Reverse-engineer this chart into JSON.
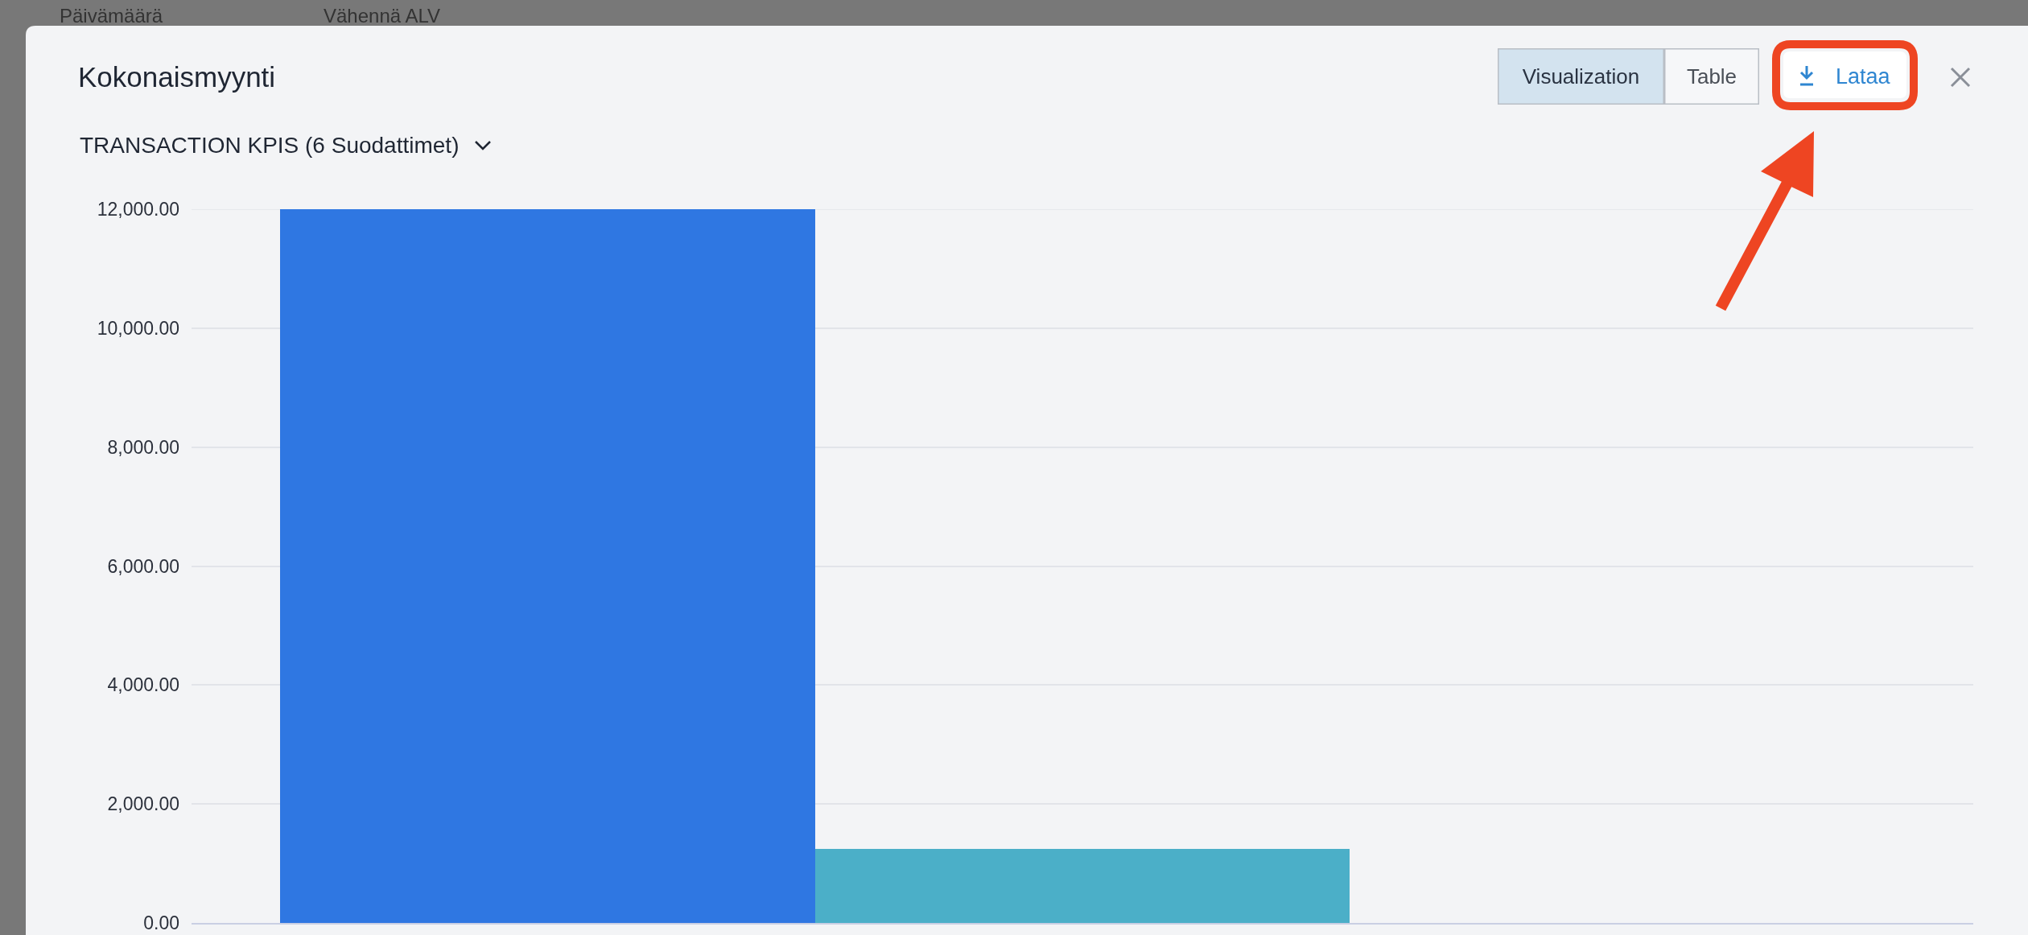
{
  "chart_data": {
    "type": "bar",
    "title": "Kokonaismyynti",
    "subtitle": "TRANSACTION KPIS (6 Suodattimet)",
    "annotations": [
      "Päivämäärä",
      "Vähennä ALV",
      "Visualization",
      "Table",
      "Lataa"
    ],
    "categories": [
      null,
      null,
      null
    ],
    "values": [
      12000,
      1240,
      null
    ],
    "colors": [
      "#2f77e2",
      "#4bafc8",
      null
    ],
    "ylim": [
      0,
      12000
    ],
    "yticks": [
      {
        "value": 0,
        "label": "0.00"
      },
      {
        "value": 2000,
        "label": "2,000.00"
      },
      {
        "value": 4000,
        "label": "4,000.00"
      },
      {
        "value": 6000,
        "label": "6,000.00"
      },
      {
        "value": 8000,
        "label": "8,000.00"
      },
      {
        "value": 10000,
        "label": "10,000.00"
      },
      {
        "value": 12000,
        "label": "12,000.00"
      }
    ],
    "grid": "y",
    "tick_labels": "y"
  }
}
